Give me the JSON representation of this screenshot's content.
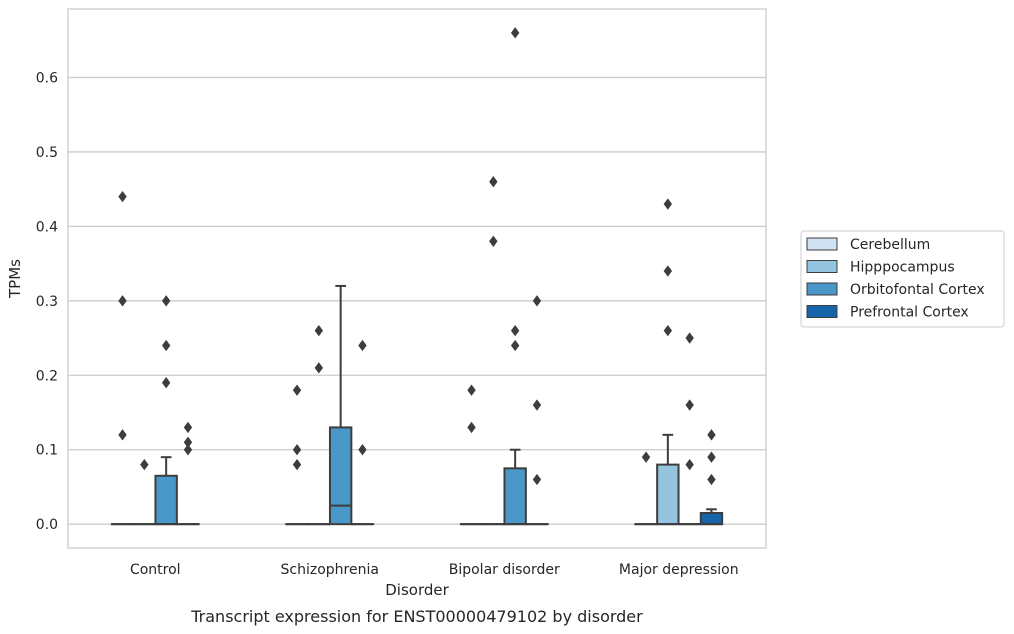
{
  "caption": "Transcript expression for ENST00000479102 by disorder",
  "chart_data": {
    "type": "box",
    "xlabel": "Disorder",
    "ylabel": "TPMs",
    "ylim": [
      -0.032,
      0.692
    ],
    "yticks": [
      0.0,
      0.1,
      0.2,
      0.3,
      0.4,
      0.5,
      0.6
    ],
    "ytick_labels": [
      "0.0",
      "0.1",
      "0.2",
      "0.3",
      "0.4",
      "0.5",
      "0.6"
    ],
    "grid": "horizontal",
    "legend_placement": "outside-right",
    "categories": [
      "Control",
      "Schizophrenia",
      "Bipolar disorder",
      "Major depression"
    ],
    "series": [
      {
        "name": "Cerebellum",
        "color": "#d0e1f2",
        "boxes": [
          {
            "q1": 0,
            "median": 0,
            "q3": 0,
            "whisker_low": 0,
            "whisker_high": 0,
            "outliers": [
              0.44,
              0.3,
              0.12
            ]
          },
          {
            "q1": 0,
            "median": 0,
            "q3": 0,
            "whisker_low": 0,
            "whisker_high": 0,
            "outliers": [
              0.18,
              0.1,
              0.08
            ]
          },
          {
            "q1": 0,
            "median": 0,
            "q3": 0,
            "whisker_low": 0,
            "whisker_high": 0,
            "outliers": [
              0.18,
              0.13
            ]
          },
          {
            "q1": 0,
            "median": 0,
            "q3": 0,
            "whisker_low": 0,
            "whisker_high": 0,
            "outliers": [
              0.09
            ]
          }
        ]
      },
      {
        "name": "Hipppocampus",
        "color": "#94c4df",
        "boxes": [
          {
            "q1": 0,
            "median": 0,
            "q3": 0,
            "whisker_low": 0,
            "whisker_high": 0,
            "outliers": [
              0.08
            ]
          },
          {
            "q1": 0,
            "median": 0,
            "q3": 0,
            "whisker_low": 0,
            "whisker_high": 0,
            "outliers": [
              0.26,
              0.21
            ]
          },
          {
            "q1": 0,
            "median": 0,
            "q3": 0,
            "whisker_low": 0,
            "whisker_high": 0,
            "outliers": [
              0.46,
              0.38
            ]
          },
          {
            "q1": 0,
            "median": 0,
            "q3": 0.08,
            "whisker_low": 0,
            "whisker_high": 0.12,
            "outliers": [
              0.43,
              0.34,
              0.26
            ]
          }
        ]
      },
      {
        "name": "Orbitofontal Cortex",
        "color": "#4a98c9",
        "boxes": [
          {
            "q1": 0,
            "median": 0,
            "q3": 0.065,
            "whisker_low": 0,
            "whisker_high": 0.09,
            "outliers": [
              0.3,
              0.24,
              0.19
            ]
          },
          {
            "q1": 0,
            "median": 0.025,
            "q3": 0.13,
            "whisker_low": 0,
            "whisker_high": 0.32,
            "outliers": []
          },
          {
            "q1": 0,
            "median": 0,
            "q3": 0.075,
            "whisker_low": 0,
            "whisker_high": 0.1,
            "outliers": [
              0.66,
              0.26,
              0.24
            ]
          },
          {
            "q1": 0,
            "median": 0,
            "q3": 0,
            "whisker_low": 0,
            "whisker_high": 0,
            "outliers": [
              0.25,
              0.16,
              0.08
            ]
          }
        ]
      },
      {
        "name": "Prefrontal Cortex",
        "color": "#1764ab",
        "boxes": [
          {
            "q1": 0,
            "median": 0,
            "q3": 0,
            "whisker_low": 0,
            "whisker_high": 0,
            "outliers": [
              0.13,
              0.11,
              0.1
            ]
          },
          {
            "q1": 0,
            "median": 0,
            "q3": 0,
            "whisker_low": 0,
            "whisker_high": 0,
            "outliers": [
              0.24,
              0.1
            ]
          },
          {
            "q1": 0,
            "median": 0,
            "q3": 0,
            "whisker_low": 0,
            "whisker_high": 0,
            "outliers": [
              0.3,
              0.16,
              0.06
            ]
          },
          {
            "q1": 0,
            "median": 0,
            "q3": 0.015,
            "whisker_low": 0,
            "whisker_high": 0.02,
            "outliers": [
              0.12,
              0.09,
              0.06
            ]
          }
        ]
      }
    ]
  }
}
